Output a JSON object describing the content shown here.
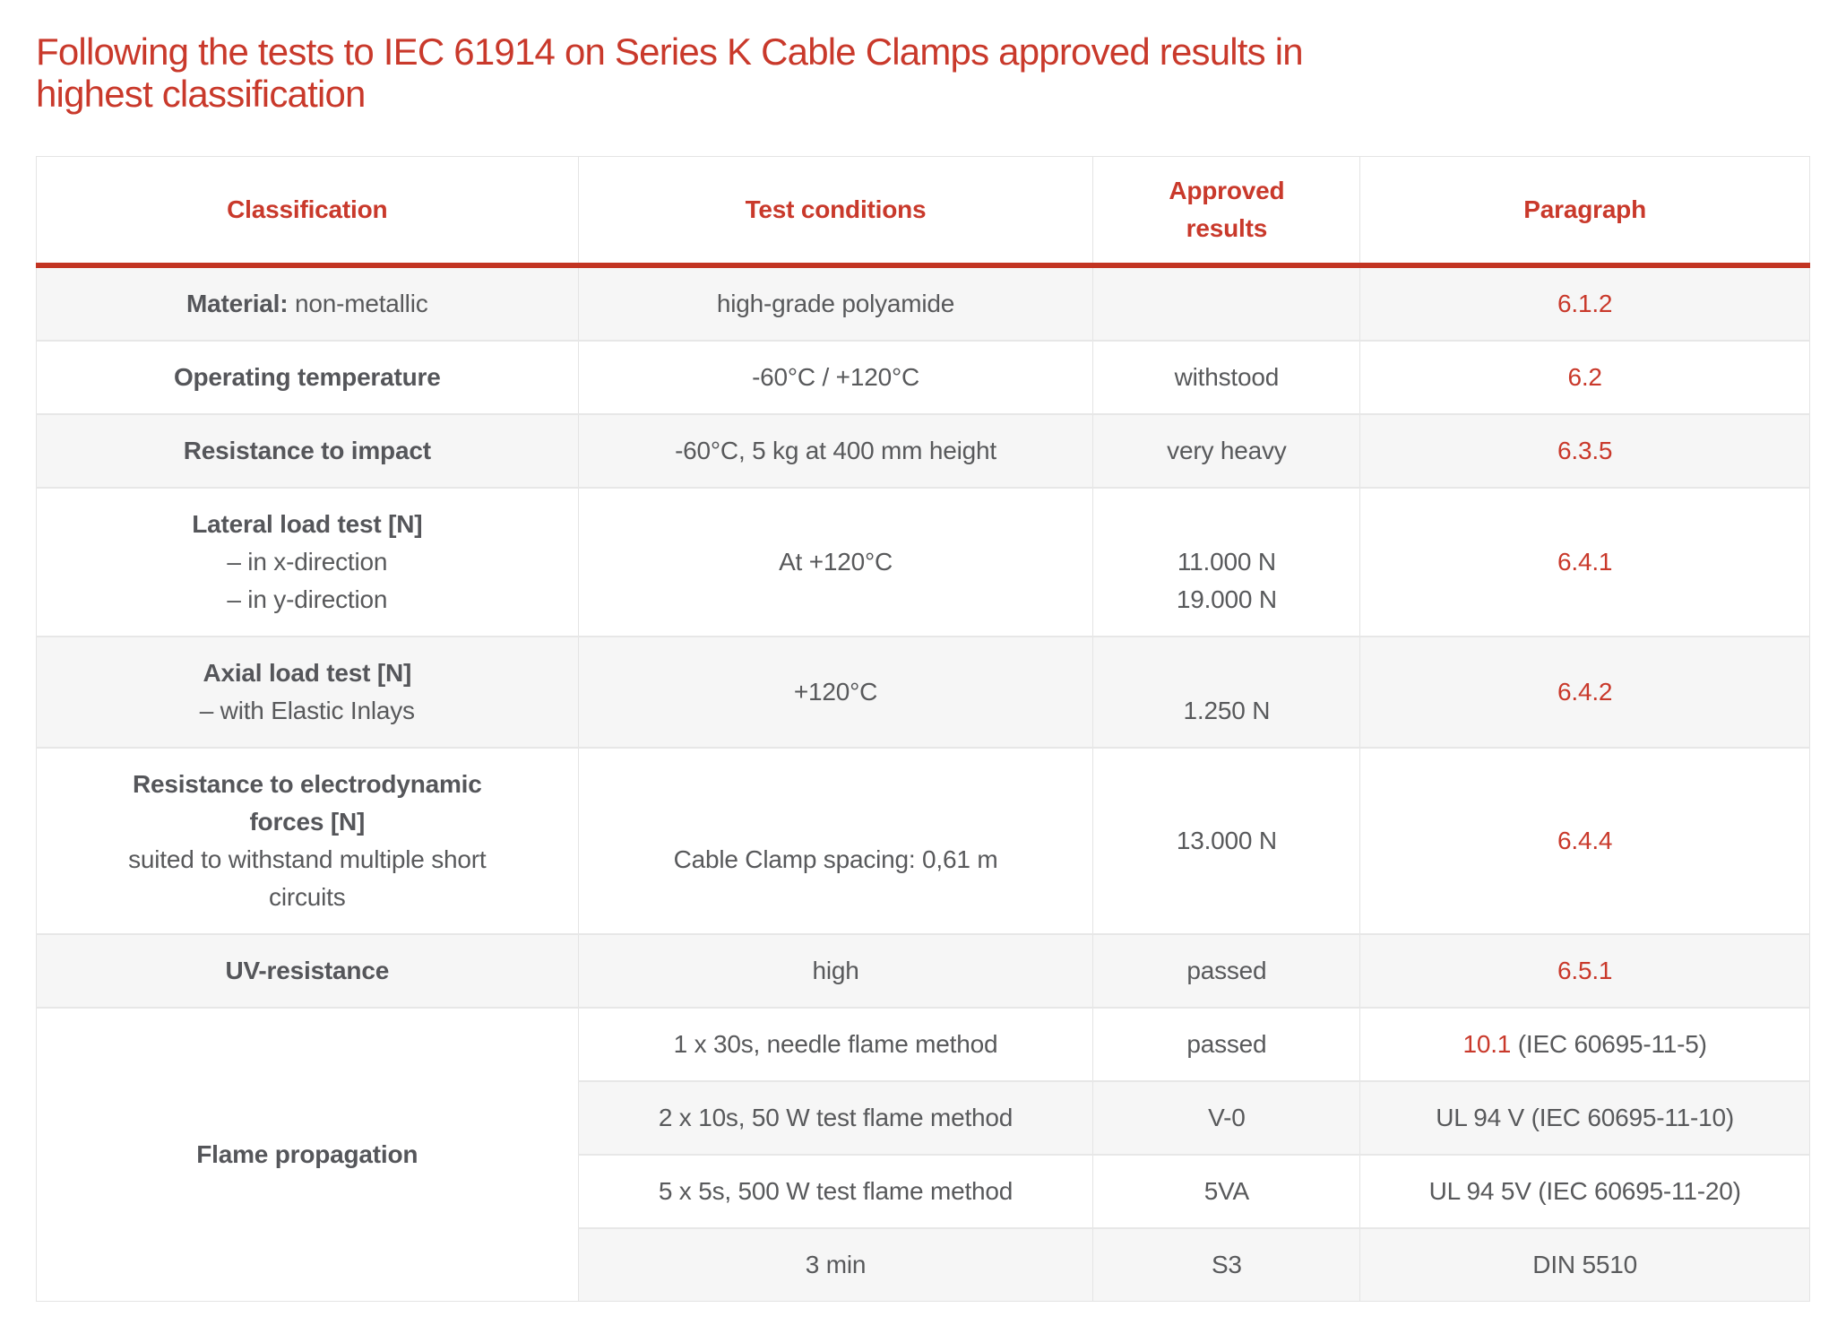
{
  "title": {
    "line1": "Following the tests to IEC 61914 on Series K Cable Clamps approved results in",
    "line2": "highest classification"
  },
  "colors": {
    "accent_red_text": "#c9392b",
    "accent_red_rule": "#c23422",
    "body_text_gray": "#58595b",
    "row_alt_background": "#f6f6f6",
    "border_gray": "#e4e4e4"
  },
  "table": {
    "headers": [
      "Classification",
      "Test conditions",
      "Approved results",
      "Paragraph"
    ],
    "rows": {
      "material": {
        "label_bold": "Material:",
        "label_rest": " non-metallic",
        "conditions": "high-grade polyamide",
        "results": "",
        "paragraph": "6.1.2"
      },
      "operating_temperature": {
        "label": "Operating temperature",
        "conditions": "-60°C / +120°C",
        "results": "withstood",
        "paragraph": "6.2"
      },
      "impact": {
        "label": "Resistance to impact",
        "conditions": "-60°C, 5 kg at 400 mm height",
        "results": "very heavy",
        "paragraph": "6.3.5"
      },
      "lateral": {
        "label": "Lateral load test [N]",
        "sub1": "– in x-direction",
        "sub2": "– in y-direction",
        "conditions": "At +120°C",
        "result1": "11.000 N",
        "result2": "19.000 N",
        "paragraph": "6.4.1"
      },
      "axial": {
        "label": "Axial load test [N]",
        "sub1": "– with Elastic Inlays",
        "conditions": "+120°C",
        "results": "1.250 N",
        "paragraph": "6.4.2"
      },
      "electrodynamic": {
        "label1": "Resistance to electrodynamic",
        "label2": "forces [N]",
        "sub1": "suited to withstand multiple short",
        "sub2": "circuits",
        "conditions": "Cable Clamp spacing: 0,61 m",
        "results": "13.000 N",
        "paragraph": "6.4.4"
      },
      "uv": {
        "label": "UV-resistance",
        "conditions": "high",
        "results": "passed",
        "paragraph": "6.5.1"
      },
      "flame": {
        "label": "Flame propagation",
        "subrows": [
          {
            "conditions": "1 x 30s, needle flame method",
            "results": "passed",
            "paragraph_number": "10.1",
            "paragraph_rest": " (IEC 60695-11-5)"
          },
          {
            "conditions": "2 x 10s, 50 W test flame method",
            "results": "V-0",
            "paragraph": "UL 94 V (IEC 60695-11-10)"
          },
          {
            "conditions": "5 x 5s, 500 W test flame method",
            "results": "5VA",
            "paragraph": "UL 94 5V (IEC 60695-11-20)"
          },
          {
            "conditions": "3 min",
            "results": "S3",
            "paragraph": "DIN 5510"
          }
        ]
      }
    }
  }
}
